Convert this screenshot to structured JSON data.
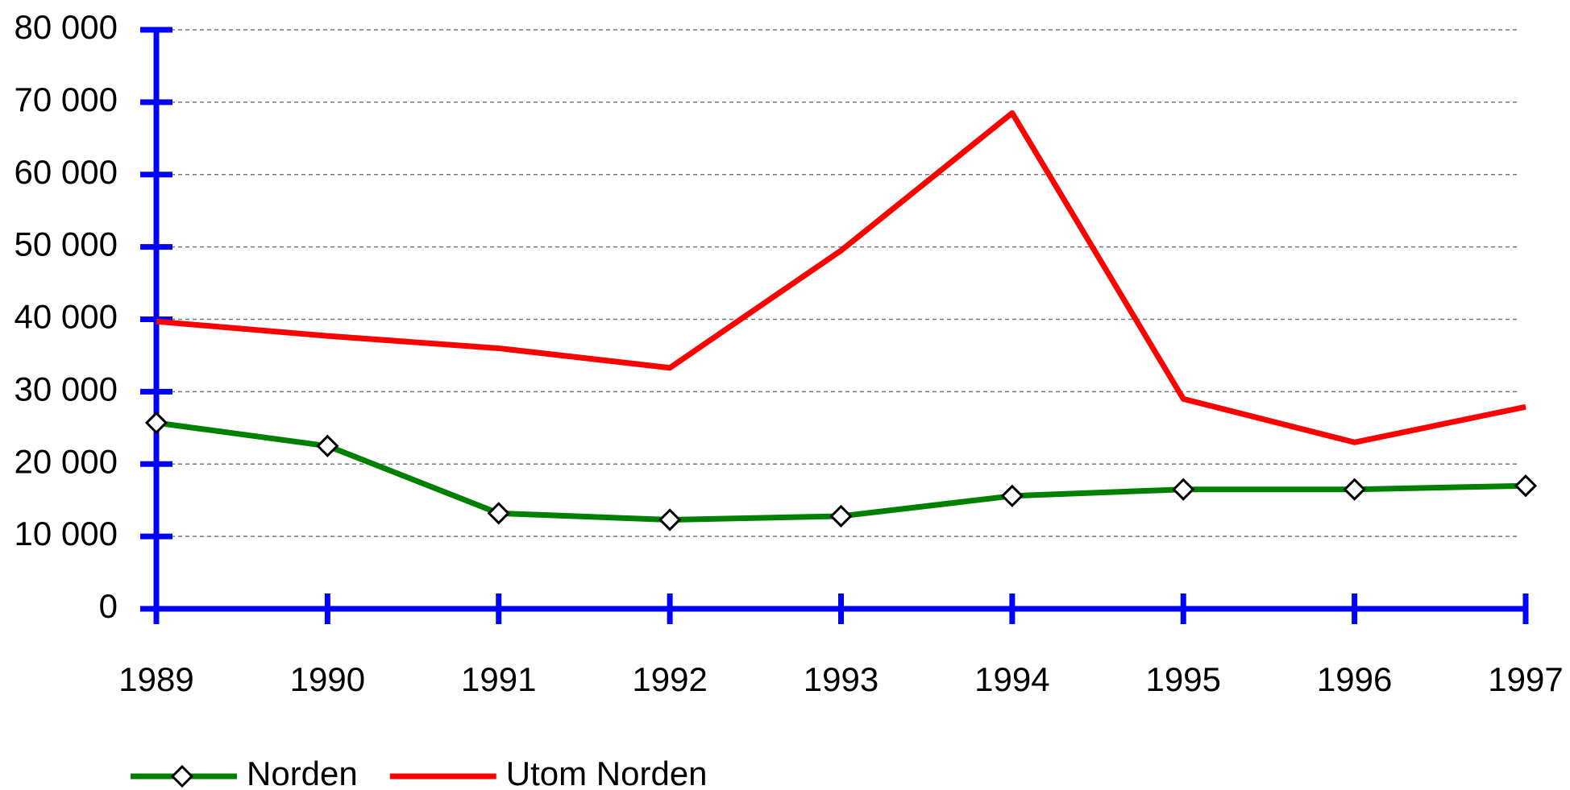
{
  "chart_data": {
    "type": "line",
    "categories": [
      "1989",
      "1990",
      "1991",
      "1992",
      "1993",
      "1994",
      "1995",
      "1996",
      "1997"
    ],
    "series": [
      {
        "name": "Norden",
        "color": "#008000",
        "marker": "diamond",
        "values": [
          25700,
          22500,
          13200,
          12300,
          12800,
          15600,
          16500,
          16500,
          17000
        ]
      },
      {
        "name": "Utom Norden",
        "color": "#ff0000",
        "values": [
          39700,
          37700,
          36000,
          33300,
          49500,
          68500,
          29000,
          23000,
          27900
        ]
      }
    ],
    "ylim": [
      0,
      80000
    ],
    "yticks": [
      0,
      {
        "value": 10000,
        "label": "10 000"
      },
      {
        "value": 20000,
        "label": "20 000"
      },
      {
        "value": 30000,
        "label": "30 000"
      },
      {
        "value": 40000,
        "label": "40 000"
      },
      {
        "value": 50000,
        "label": "50 000"
      },
      {
        "value": 60000,
        "label": "60 000"
      },
      {
        "value": 70000,
        "label": "70 000"
      },
      {
        "value": 80000,
        "label": "80 000"
      }
    ],
    "grid": true,
    "axis_color": "#0000ff",
    "legend": "bottom"
  }
}
